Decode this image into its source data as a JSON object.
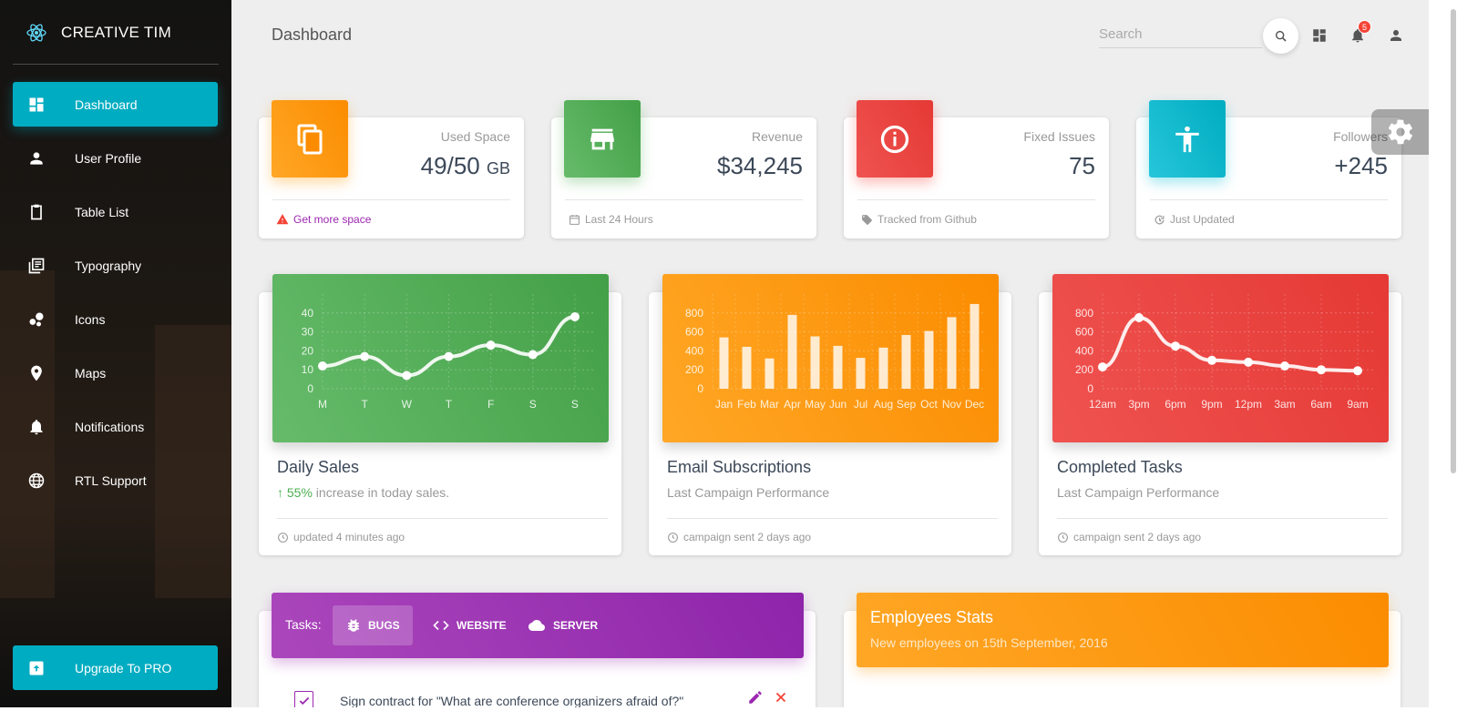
{
  "brand": {
    "name": "CREATIVE TIM",
    "logo_icon": "react-atom-icon"
  },
  "sidebar": {
    "items": [
      {
        "label": "Dashboard",
        "icon": "dashboard-icon",
        "active": true
      },
      {
        "label": "User Profile",
        "icon": "person-icon"
      },
      {
        "label": "Table List",
        "icon": "clipboard-icon"
      },
      {
        "label": "Typography",
        "icon": "library-books-icon"
      },
      {
        "label": "Icons",
        "icon": "bubble-chart-icon"
      },
      {
        "label": "Maps",
        "icon": "location-pin-icon"
      },
      {
        "label": "Notifications",
        "icon": "bell-icon"
      },
      {
        "label": "RTL Support",
        "icon": "language-icon"
      }
    ],
    "upgrade": {
      "label": "Upgrade To PRO",
      "icon": "unarchive-icon"
    },
    "active_color": "#00acc1"
  },
  "header": {
    "title": "Dashboard",
    "search_placeholder": "Search",
    "notification_count": "5"
  },
  "stats": [
    {
      "label": "Used Space",
      "value": "49/50",
      "unit": "GB",
      "footer": "Get more space",
      "footer_icon": "warning-icon",
      "color": "#ff9800",
      "icon": "content-copy-icon"
    },
    {
      "label": "Revenue",
      "value": "$34,245",
      "footer": "Last 24 Hours",
      "footer_icon": "date-range-icon",
      "color": "#4caf50",
      "icon": "store-icon"
    },
    {
      "label": "Fixed Issues",
      "value": "75",
      "footer": "Tracked from Github",
      "footer_icon": "local-offer-icon",
      "color": "#f44336",
      "icon": "info-outline-icon"
    },
    {
      "label": "Followers",
      "value": "+245",
      "footer": "Just Updated",
      "footer_icon": "update-icon",
      "color": "#00bcd4",
      "icon": "accessibility-icon"
    }
  ],
  "charts": [
    {
      "title": "Daily Sales",
      "sub_highlight": "55%",
      "sub_text": " increase in today sales.",
      "footer": "updated 4 minutes ago",
      "color_from": "#66bb6a",
      "color_to": "#43a047"
    },
    {
      "title": "Email Subscriptions",
      "sub_text": "Last Campaign Performance",
      "footer": "campaign sent 2 days ago",
      "color_from": "#ffa726",
      "color_to": "#fb8c00"
    },
    {
      "title": "Completed Tasks",
      "sub_text": "Last Campaign Performance",
      "footer": "campaign sent 2 days ago",
      "color_from": "#ef5350",
      "color_to": "#e53935"
    }
  ],
  "chart_data": [
    {
      "type": "line",
      "categories": [
        "M",
        "T",
        "W",
        "T",
        "F",
        "S",
        "S"
      ],
      "values": [
        12,
        17,
        7,
        17,
        23,
        18,
        38
      ],
      "yticks": [
        0,
        10,
        20,
        30,
        40
      ],
      "ylim": [
        0,
        50
      ]
    },
    {
      "type": "bar",
      "categories": [
        "Jan",
        "Feb",
        "Mar",
        "Apr",
        "May",
        "Jun",
        "Jul",
        "Aug",
        "Sep",
        "Oct",
        "Nov",
        "Dec"
      ],
      "values": [
        542,
        443,
        320,
        780,
        553,
        453,
        326,
        434,
        568,
        610,
        756,
        895
      ],
      "yticks": [
        0,
        200,
        400,
        600,
        800
      ],
      "ylim": [
        0,
        1000
      ]
    },
    {
      "type": "line",
      "categories": [
        "12am",
        "3pm",
        "6pm",
        "9pm",
        "12pm",
        "3am",
        "6am",
        "9am"
      ],
      "values": [
        230,
        750,
        450,
        300,
        280,
        240,
        200,
        190
      ],
      "yticks": [
        0,
        200,
        400,
        600,
        800
      ],
      "ylim": [
        0,
        1000
      ]
    }
  ],
  "tasks": {
    "label": "Tasks:",
    "tabs": [
      {
        "label": "BUGS",
        "icon": "bug-icon",
        "active": true
      },
      {
        "label": "WEBSITE",
        "icon": "code-icon"
      },
      {
        "label": "SERVER",
        "icon": "cloud-icon"
      }
    ],
    "rows": [
      {
        "text": "Sign contract for \"What are conference organizers afraid of?\"",
        "checked": true
      }
    ]
  },
  "employees": {
    "title": "Employees Stats",
    "subtitle": "New employees on 15th September, 2016"
  }
}
